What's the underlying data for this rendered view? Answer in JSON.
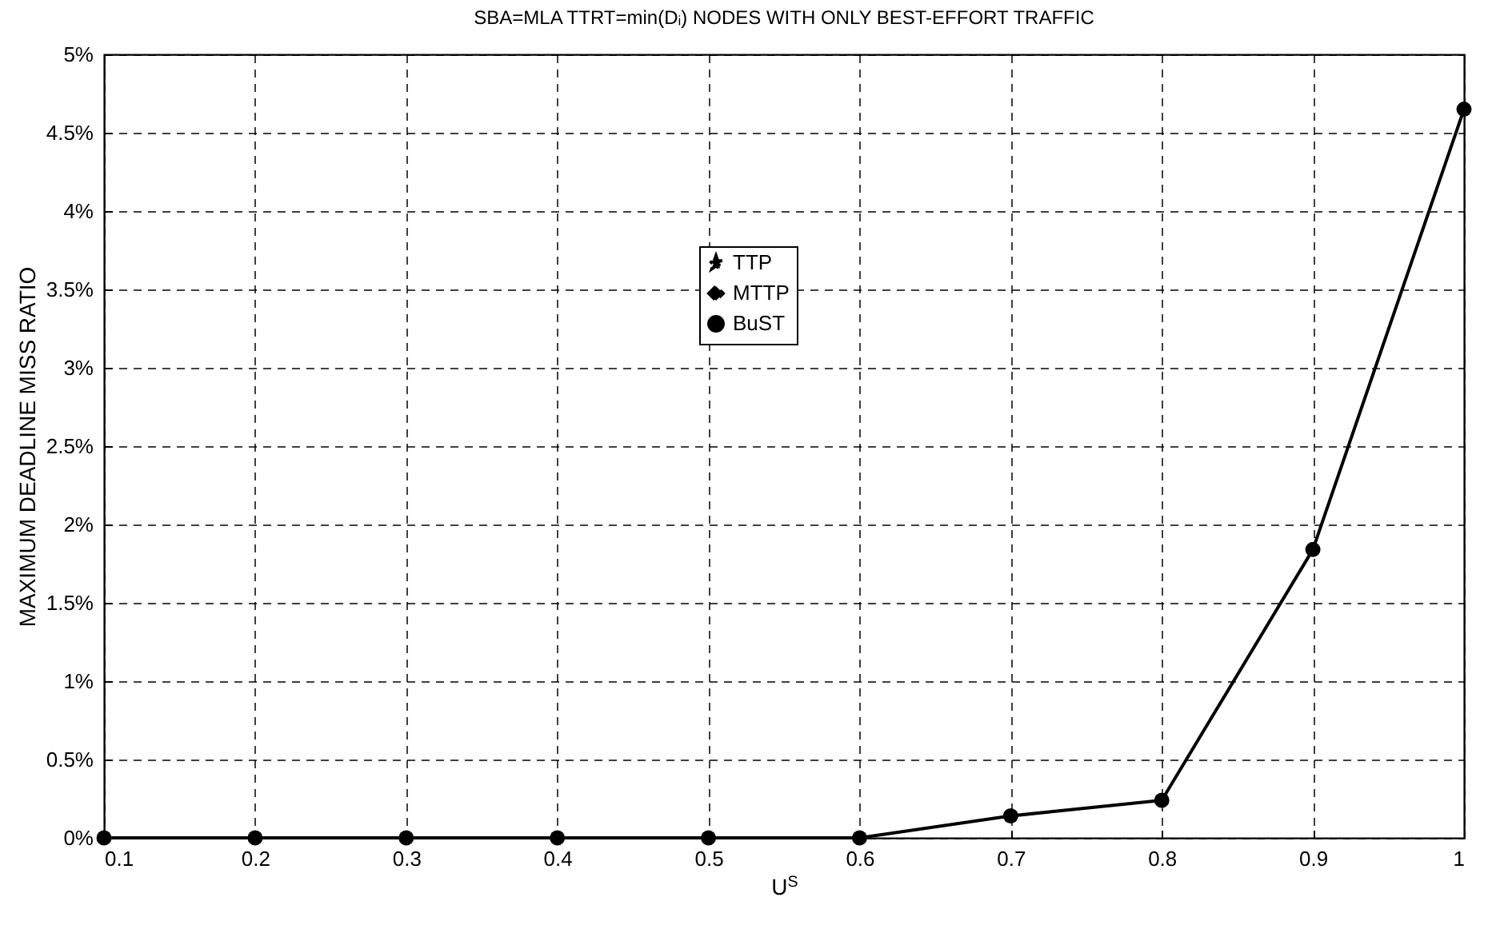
{
  "chart_data": {
    "type": "line",
    "title": "SBA=MLA     TTRT=min(Dᵢ)     NODES WITH ONLY BEST-EFFORT TRAFFIC",
    "xlabel": "U$^{S}$",
    "ylabel": "MAXIMUM DEADLINE MISS RATIO",
    "x": [
      0.1,
      0.2,
      0.3,
      0.4,
      0.5,
      0.6,
      0.7,
      0.8,
      0.9,
      1
    ],
    "series": [
      {
        "name": "TTP",
        "color": "#000000",
        "marker": "star",
        "line_style": "dashdot",
        "values": [
          null,
          null,
          null,
          null,
          null,
          null,
          null,
          null,
          null,
          null
        ]
      },
      {
        "name": "MTTP",
        "color": "#000000",
        "marker": "diamond",
        "line_style": "dashed",
        "values": [
          null,
          null,
          null,
          null,
          null,
          null,
          null,
          null,
          null,
          null
        ]
      },
      {
        "name": "BuST",
        "color": "#000000",
        "marker": "circle",
        "line_style": "solid",
        "values": [
          0,
          0,
          0,
          0,
          0,
          0,
          0.14,
          0.24,
          1.84,
          4.65
        ]
      }
    ],
    "xlim": [
      0.1,
      1
    ],
    "xticks": [
      0.1,
      0.2,
      0.3,
      0.4,
      0.5,
      0.6,
      0.7,
      0.8,
      0.9,
      1
    ],
    "ylim": [
      0,
      5
    ],
    "yticks": [
      {
        "value": 0,
        "label": "0%"
      },
      {
        "value": 0.5,
        "label": "0.5%"
      },
      {
        "value": 1,
        "label": "1%"
      },
      {
        "value": 1.5,
        "label": "1.5%"
      },
      {
        "value": 2,
        "label": "2%"
      },
      {
        "value": 2.5,
        "label": "2.5%"
      },
      {
        "value": 3,
        "label": "3%"
      },
      {
        "value": 3.5,
        "label": "3.5%"
      },
      {
        "value": 4,
        "label": "4%"
      },
      {
        "value": 4.5,
        "label": "4.5%"
      },
      {
        "value": 5,
        "label": "5%"
      }
    ],
    "grid": true,
    "legend": "top"
  }
}
